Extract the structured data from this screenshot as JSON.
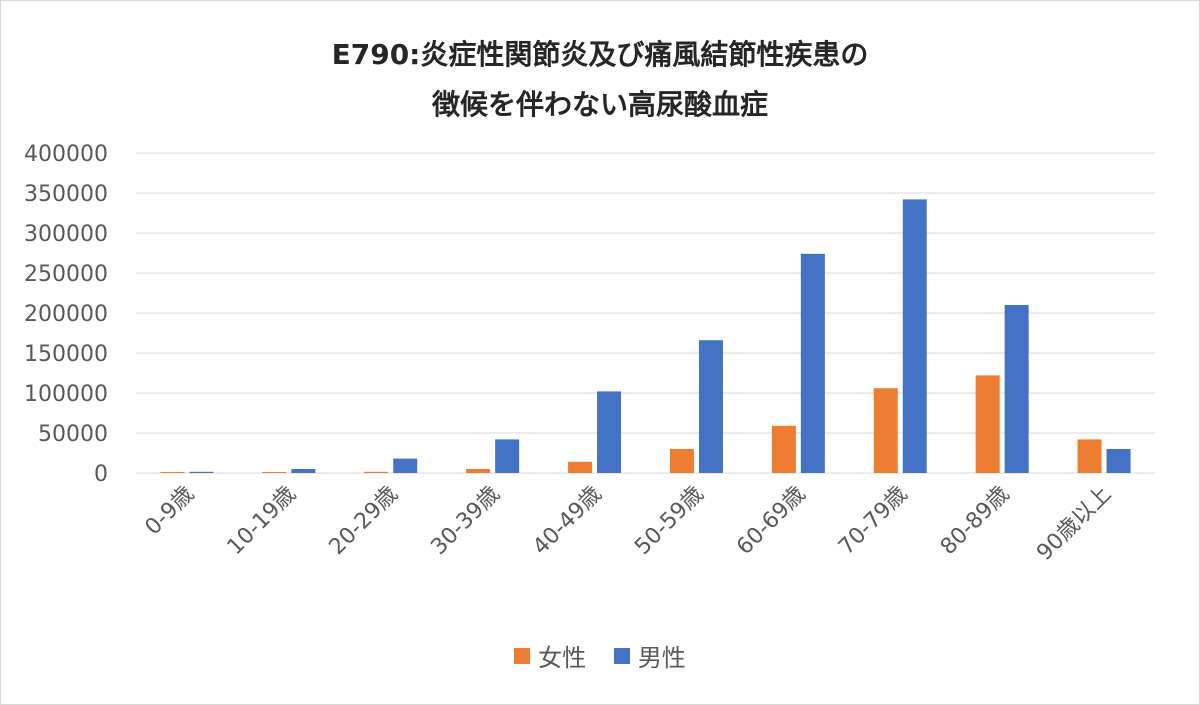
{
  "chart_data": {
    "type": "bar",
    "title_lines": [
      "E790:炎症性関節炎及び痛風結節性疾患の",
      "徴候を伴わない高尿酸血症"
    ],
    "categories": [
      "0-9歳",
      "10-19歳",
      "20-29歳",
      "30-39歳",
      "40-49歳",
      "50-59歳",
      "60-69歳",
      "70-79歳",
      "80-89歳",
      "90歳以上"
    ],
    "series": [
      {
        "name": "女性",
        "color": "#ED7D31",
        "values": [
          1200,
          1200,
          1500,
          5000,
          14000,
          30000,
          59000,
          106000,
          122000,
          42000
        ]
      },
      {
        "name": "男性",
        "color": "#4472C4",
        "values": [
          1500,
          5000,
          18000,
          42000,
          102000,
          166000,
          274000,
          342000,
          210000,
          30000
        ]
      }
    ],
    "yticks": [
      "0",
      "50000",
      "100000",
      "150000",
      "200000",
      "250000",
      "300000",
      "350000",
      "400000"
    ],
    "ylim": [
      0,
      400000
    ],
    "grid": true,
    "legend_position": "bottom"
  }
}
